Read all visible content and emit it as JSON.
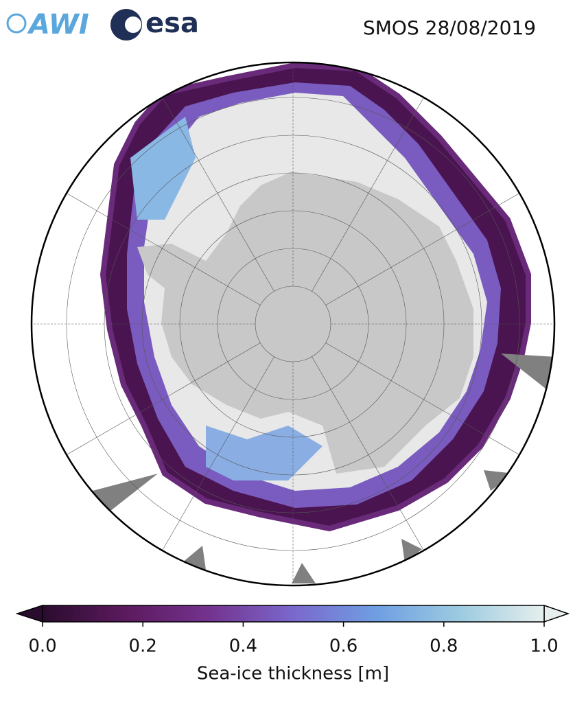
{
  "header": {
    "logos": [
      "AWI",
      "esa"
    ],
    "title": "SMOS 28/08/2019"
  },
  "colorbar": {
    "label": "Sea-ice thickness [m]",
    "lim": [
      0,
      1
    ],
    "ticks": [
      {
        "value": 0,
        "label": "0.0"
      },
      {
        "value": 0.2,
        "label": "0.2"
      },
      {
        "value": 0.4,
        "label": "0.4"
      },
      {
        "value": 0.6,
        "label": "0.6"
      },
      {
        "value": 0.8,
        "label": "0.8"
      },
      {
        "value": 1,
        "label": "1.0"
      }
    ],
    "colors": [
      "#2a0c2e",
      "#5c1a5e",
      "#74338f",
      "#7a68cc",
      "#6f9fe2",
      "#9dcbe0",
      "#e6efed"
    ]
  }
}
